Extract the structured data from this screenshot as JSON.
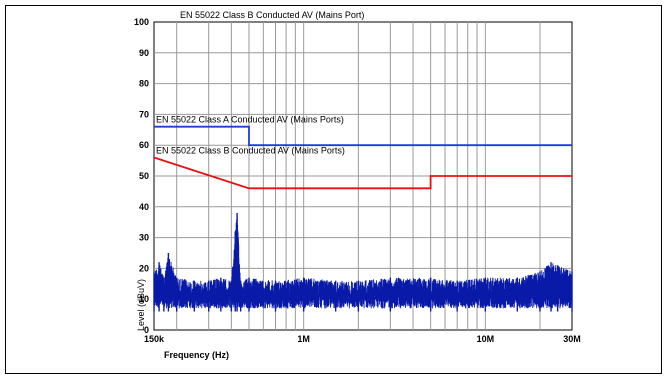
{
  "chart_data": {
    "type": "line",
    "title": "EN 55022 Class B Conducted AV (Mains Port)",
    "xlabel": "Frequency (Hz)",
    "ylabel": "Level (dBuV)",
    "xscale": "log",
    "xlim": [
      150000,
      30000000
    ],
    "ylim": [
      0,
      100
    ],
    "grid": true,
    "y_ticks": [
      0,
      10,
      20,
      30,
      40,
      50,
      60,
      70,
      80,
      90,
      100
    ],
    "x_tick_labels": [
      {
        "value": 150000,
        "label": "150k"
      },
      {
        "value": 1000000,
        "label": "1M"
      },
      {
        "value": 10000000,
        "label": "10M"
      },
      {
        "value": 30000000,
        "label": "30M"
      }
    ],
    "series": [
      {
        "name": "EN 55022 Class A Conducted AV (Mains Ports)",
        "color": "#1e3cd8",
        "x": [
          150000,
          500000,
          500000,
          30000000
        ],
        "y": [
          66,
          66,
          60,
          60
        ]
      },
      {
        "name": "EN 55022 Class B Conducted AV (Mains Ports)",
        "color": "#e81010",
        "x": [
          150000,
          500000,
          5000000,
          5000000,
          30000000
        ],
        "y": [
          56,
          46,
          46,
          50,
          50
        ]
      },
      {
        "color": "#0a1aa8",
        "style": "noise",
        "x": [
          150000,
          160000,
          170000,
          180000,
          200000,
          250000,
          300000,
          350000,
          400000,
          420000,
          430000,
          450000,
          500000,
          700000,
          1000000,
          1500000,
          2000000,
          3000000,
          5000000,
          7000000,
          10000000,
          15000000,
          20000000,
          23000000,
          25000000,
          30000000
        ],
        "y": [
          19,
          22,
          17,
          25,
          17,
          16,
          16,
          17,
          16,
          32,
          38,
          16,
          17,
          16,
          17,
          16,
          16,
          17,
          17,
          16,
          17,
          17,
          19,
          22,
          21,
          19
        ]
      }
    ]
  }
}
